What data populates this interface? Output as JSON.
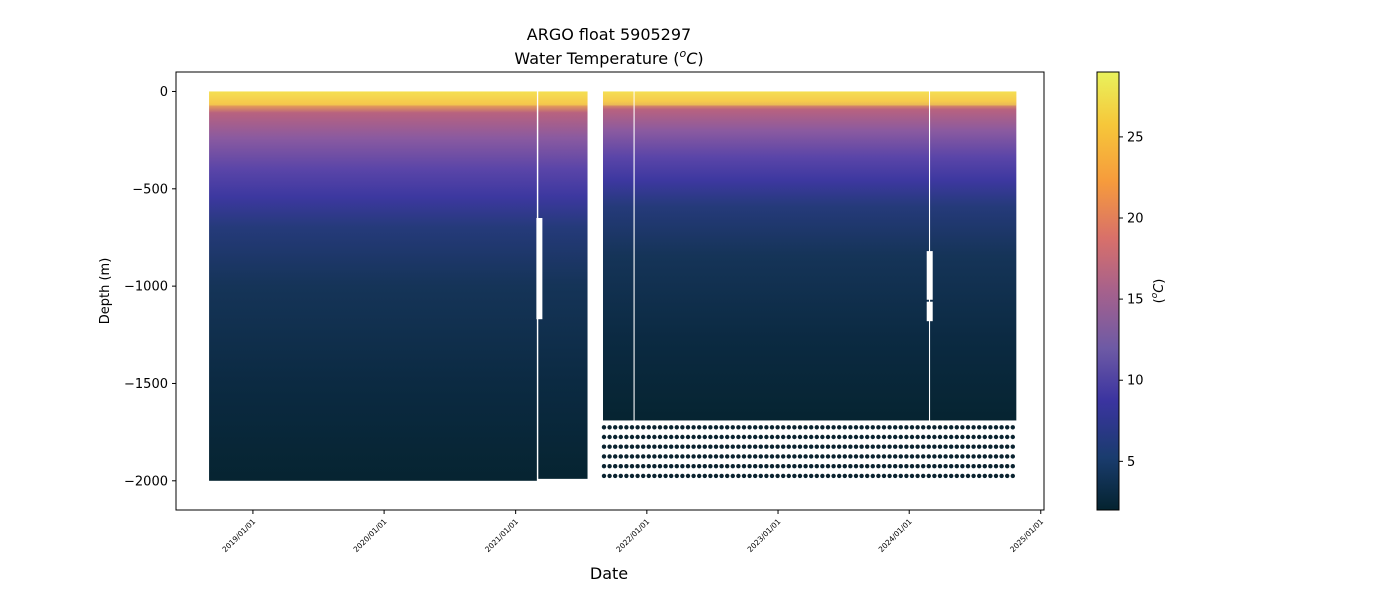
{
  "chart_data": {
    "type": "scatter",
    "title_line1": "ARGO float 5905297",
    "title_line2_text": "Water Temperature (",
    "title_unit_base": "C",
    "title_unit_sup": "o",
    "title_close": ")",
    "xlabel": "Date",
    "ylabel": "Depth (m)",
    "colorbar_label_base": "C",
    "colorbar_label_sup": "o",
    "colorbar_label_open": "(",
    "colorbar_label_close": ")",
    "x_ticks": [
      "2019/01/01",
      "2020/01/01",
      "2021/01/01",
      "2022/01/01",
      "2023/01/01",
      "2024/01/01",
      "2025/01/01"
    ],
    "x_range": [
      "2018-06-01",
      "2025-01-10"
    ],
    "y_ticks": [
      0,
      -500,
      -1000,
      -1500,
      -2000
    ],
    "y_tick_labels": [
      "0",
      "−500",
      "−1000",
      "−1500",
      "−2000"
    ],
    "ylim": [
      -2150,
      100
    ],
    "colorbar_ticks": [
      5,
      10,
      15,
      20,
      25
    ],
    "colorbar_range": [
      2,
      29
    ],
    "colormap": "thermal",
    "colormap_stops": [
      "#04232f",
      "#1a3c6e",
      "#3b34a0",
      "#6e5aa5",
      "#a6618c",
      "#d8706a",
      "#f69b3c",
      "#f6c73a",
      "#e9f25c"
    ],
    "segments": [
      {
        "start": "2018-09-01",
        "end": "2021-03-01",
        "max_depth": -2000
      },
      {
        "start": "2021-03-05",
        "end": "2021-07-20",
        "max_depth": -1990
      },
      {
        "start": "2021-09-01",
        "end": "2021-11-25",
        "max_depth": -1690
      },
      {
        "start": "2021-11-28",
        "end": "2024-02-25",
        "max_depth": -1690
      },
      {
        "start": "2024-02-28",
        "end": "2024-10-25",
        "max_depth": -1690
      }
    ],
    "gaps": [
      {
        "date": "2021-03-08",
        "from": -650,
        "to": -1170
      },
      {
        "date": "2024-02-27",
        "from": -820,
        "to": -1070
      },
      {
        "date": "2024-02-27",
        "from": -1080,
        "to": -1180
      }
    ],
    "deep_point_levels": [
      -1725,
      -1775,
      -1825,
      -1875,
      -1925,
      -1975
    ],
    "deep_point_range": [
      "2021-09-01",
      "2024-10-25"
    ]
  }
}
